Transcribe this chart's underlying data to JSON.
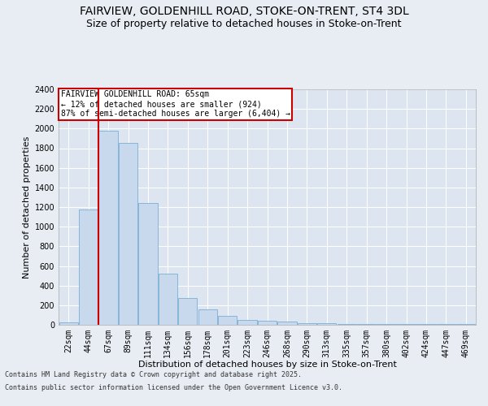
{
  "title1": "FAIRVIEW, GOLDENHILL ROAD, STOKE-ON-TRENT, ST4 3DL",
  "title2": "Size of property relative to detached houses in Stoke-on-Trent",
  "xlabel": "Distribution of detached houses by size in Stoke-on-Trent",
  "ylabel": "Number of detached properties",
  "categories": [
    "22sqm",
    "44sqm",
    "67sqm",
    "89sqm",
    "111sqm",
    "134sqm",
    "156sqm",
    "178sqm",
    "201sqm",
    "223sqm",
    "246sqm",
    "268sqm",
    "290sqm",
    "313sqm",
    "335sqm",
    "357sqm",
    "380sqm",
    "402sqm",
    "424sqm",
    "447sqm",
    "469sqm"
  ],
  "values": [
    25,
    1175,
    1975,
    1850,
    1240,
    520,
    275,
    160,
    90,
    50,
    40,
    30,
    20,
    15,
    10,
    5,
    5,
    5,
    5,
    5,
    5
  ],
  "bar_color": "#c8d8ed",
  "bar_edge_color": "#7aafd4",
  "vline_color": "#cc0000",
  "annotation_text": "FAIRVIEW GOLDENHILL ROAD: 65sqm\n← 12% of detached houses are smaller (924)\n87% of semi-detached houses are larger (6,404) →",
  "annotation_box_color": "#ffffff",
  "annotation_box_edge": "#cc0000",
  "ylim": [
    0,
    2400
  ],
  "yticks": [
    0,
    200,
    400,
    600,
    800,
    1000,
    1200,
    1400,
    1600,
    1800,
    2000,
    2200,
    2400
  ],
  "footer1": "Contains HM Land Registry data © Crown copyright and database right 2025.",
  "footer2": "Contains public sector information licensed under the Open Government Licence v3.0.",
  "bg_color": "#e8edf4",
  "plot_bg_color": "#dce5f0",
  "title_fontsize": 10,
  "subtitle_fontsize": 9,
  "axis_label_fontsize": 8,
  "tick_fontsize": 7,
  "footer_fontsize": 6
}
